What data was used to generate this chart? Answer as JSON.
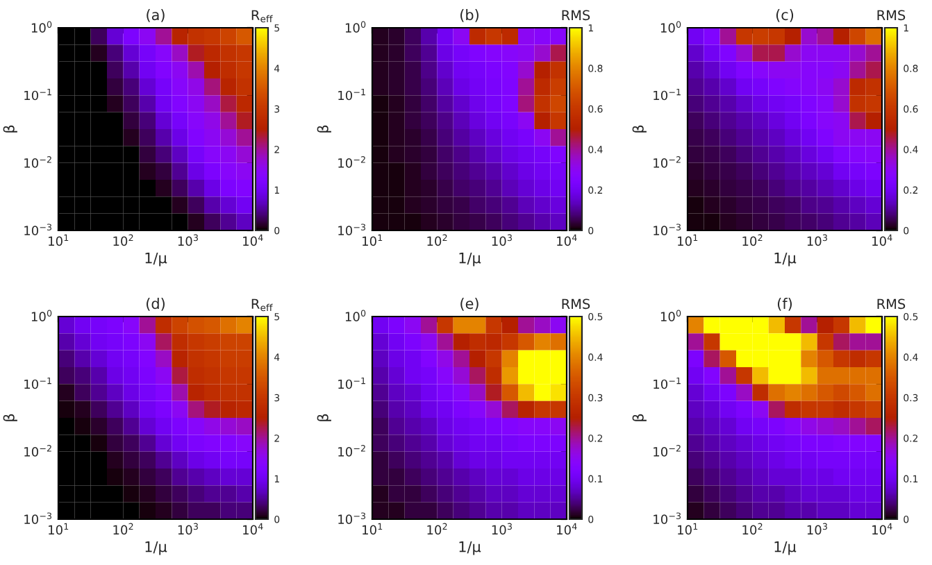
{
  "chart_data": [
    {
      "type": "heatmap",
      "title": "(a)",
      "xlabel": "1/μ",
      "ylabel": "β",
      "clabel": "R$_{eff}$",
      "log": "xy",
      "xlim": [
        10,
        10000
      ],
      "ylim": [
        0.001,
        1
      ],
      "xticks": [
        {
          "value": 10,
          "label": "10$^{1}$"
        },
        {
          "value": 100,
          "label": "10$^{2}$"
        },
        {
          "value": 1000,
          "label": "10$^{3}$"
        },
        {
          "value": 10000,
          "label": "10$^{4}$"
        }
      ],
      "yticks": [
        {
          "value": 0.001,
          "label": "10$^{−3}$"
        },
        {
          "value": 0.01,
          "label": "10$^{−2}$"
        },
        {
          "value": 0.1,
          "label": "10$^{−1}$"
        },
        {
          "value": 1,
          "label": "10$^{0}$"
        }
      ],
      "clim": [
        0,
        5
      ],
      "cticks": [
        0,
        1,
        2,
        3,
        4,
        5
      ],
      "cells": [
        [
          0,
          0,
          0.3,
          0.8,
          1.2,
          1.5,
          2.0,
          2.6,
          2.9,
          3.0,
          3.2,
          3.5
        ],
        [
          0,
          0,
          0.1,
          0.4,
          0.8,
          1.1,
          1.4,
          1.8,
          2.4,
          2.7,
          2.9,
          3.0
        ],
        [
          0,
          0,
          0,
          0.3,
          0.6,
          1.0,
          1.3,
          1.5,
          1.9,
          2.5,
          2.8,
          3.0
        ],
        [
          0,
          0,
          0,
          0.2,
          0.4,
          0.8,
          1.1,
          1.4,
          1.6,
          2.1,
          2.6,
          2.9
        ],
        [
          0,
          0,
          0,
          0.1,
          0.3,
          0.6,
          1.0,
          1.3,
          1.5,
          1.8,
          2.3,
          2.7
        ],
        [
          0,
          0,
          0,
          0,
          0.2,
          0.4,
          0.8,
          1.1,
          1.4,
          1.6,
          2.0,
          2.4
        ],
        [
          0,
          0,
          0,
          0,
          0.1,
          0.3,
          0.6,
          0.9,
          1.3,
          1.5,
          1.7,
          2.0
        ],
        [
          0,
          0,
          0,
          0,
          0,
          0.2,
          0.4,
          0.7,
          1.1,
          1.4,
          1.5,
          1.7
        ],
        [
          0,
          0,
          0,
          0,
          0,
          0.1,
          0.2,
          0.5,
          0.9,
          1.2,
          1.4,
          1.5
        ],
        [
          0,
          0,
          0,
          0,
          0,
          0,
          0.1,
          0.3,
          0.6,
          0.9,
          1.2,
          1.3
        ],
        [
          0,
          0,
          0,
          0,
          0,
          0,
          0,
          0.1,
          0.3,
          0.6,
          0.8,
          1.0
        ],
        [
          0,
          0,
          0,
          0,
          0,
          0,
          0,
          0,
          0.1,
          0.3,
          0.5,
          0.7
        ]
      ]
    },
    {
      "type": "heatmap",
      "title": "(b)",
      "xlabel": "1/μ",
      "ylabel": "β",
      "clabel": "RMS",
      "log": "xy",
      "xlim": [
        10,
        10000
      ],
      "ylim": [
        0.001,
        1
      ],
      "xticks": [
        {
          "value": 10,
          "label": "10$^{1}$"
        },
        {
          "value": 100,
          "label": "10$^{2}$"
        },
        {
          "value": 1000,
          "label": "10$^{3}$"
        },
        {
          "value": 10000,
          "label": "10$^{4}$"
        }
      ],
      "yticks": [
        {
          "value": 0.001,
          "label": "10$^{−3}$"
        },
        {
          "value": 0.01,
          "label": "10$^{−2}$"
        },
        {
          "value": 0.1,
          "label": "10$^{−1}$"
        },
        {
          "value": 1,
          "label": "10$^{0}$"
        }
      ],
      "clim": [
        0,
        1
      ],
      "cticks": [
        0,
        0.2,
        0.4,
        0.6,
        0.8,
        1
      ],
      "cells": [
        [
          0.02,
          0.03,
          0.06,
          0.12,
          0.2,
          0.3,
          0.55,
          0.6,
          0.55,
          0.3,
          0.28,
          0.28
        ],
        [
          0.02,
          0.03,
          0.06,
          0.1,
          0.18,
          0.22,
          0.25,
          0.27,
          0.28,
          0.3,
          0.35,
          0.45
        ],
        [
          0.02,
          0.03,
          0.05,
          0.09,
          0.15,
          0.2,
          0.22,
          0.24,
          0.26,
          0.35,
          0.5,
          0.58
        ],
        [
          0.02,
          0.03,
          0.05,
          0.08,
          0.13,
          0.18,
          0.21,
          0.23,
          0.25,
          0.4,
          0.55,
          0.62
        ],
        [
          0.01,
          0.02,
          0.04,
          0.07,
          0.11,
          0.15,
          0.19,
          0.22,
          0.25,
          0.42,
          0.58,
          0.65
        ],
        [
          0.01,
          0.02,
          0.04,
          0.06,
          0.09,
          0.13,
          0.17,
          0.2,
          0.23,
          0.3,
          0.5,
          0.6
        ],
        [
          0.01,
          0.02,
          0.03,
          0.05,
          0.08,
          0.11,
          0.14,
          0.17,
          0.2,
          0.23,
          0.3,
          0.4
        ],
        [
          0.01,
          0.02,
          0.03,
          0.04,
          0.07,
          0.09,
          0.12,
          0.15,
          0.18,
          0.2,
          0.22,
          0.25
        ],
        [
          0.01,
          0.01,
          0.02,
          0.04,
          0.06,
          0.08,
          0.1,
          0.12,
          0.15,
          0.18,
          0.2,
          0.22
        ],
        [
          0.01,
          0.01,
          0.02,
          0.03,
          0.05,
          0.07,
          0.08,
          0.1,
          0.13,
          0.16,
          0.18,
          0.2
        ],
        [
          0.01,
          0.01,
          0.02,
          0.03,
          0.04,
          0.05,
          0.07,
          0.08,
          0.1,
          0.13,
          0.15,
          0.17
        ],
        [
          0.01,
          0.01,
          0.01,
          0.02,
          0.03,
          0.04,
          0.05,
          0.06,
          0.08,
          0.1,
          0.12,
          0.14
        ]
      ]
    },
    {
      "type": "heatmap",
      "title": "(c)",
      "xlabel": "1/μ",
      "ylabel": "β",
      "clabel": "RMS",
      "log": "xy",
      "xlim": [
        10,
        10000
      ],
      "ylim": [
        0.001,
        1
      ],
      "xticks": [
        {
          "value": 10,
          "label": "10$^{1}$"
        },
        {
          "value": 100,
          "label": "10$^{2}$"
        },
        {
          "value": 1000,
          "label": "10$^{3}$"
        },
        {
          "value": 10000,
          "label": "10$^{4}$"
        }
      ],
      "yticks": [
        {
          "value": 0.001,
          "label": "10$^{−3}$"
        },
        {
          "value": 0.01,
          "label": "10$^{−2}$"
        },
        {
          "value": 0.1,
          "label": "10$^{−1}$"
        },
        {
          "value": 1,
          "label": "10$^{0}$"
        }
      ],
      "clim": [
        0,
        1
      ],
      "cticks": [
        0,
        0.2,
        0.4,
        0.6,
        0.8,
        1
      ],
      "cells": [
        [
          0.2,
          0.25,
          0.4,
          0.6,
          0.62,
          0.6,
          0.5,
          0.35,
          0.4,
          0.5,
          0.65,
          0.75
        ],
        [
          0.15,
          0.2,
          0.25,
          0.35,
          0.45,
          0.45,
          0.35,
          0.3,
          0.3,
          0.3,
          0.35,
          0.4
        ],
        [
          0.12,
          0.15,
          0.2,
          0.25,
          0.28,
          0.3,
          0.3,
          0.28,
          0.28,
          0.3,
          0.4,
          0.45
        ],
        [
          0.1,
          0.12,
          0.15,
          0.2,
          0.22,
          0.25,
          0.27,
          0.28,
          0.3,
          0.35,
          0.55,
          0.58
        ],
        [
          0.08,
          0.1,
          0.12,
          0.15,
          0.18,
          0.2,
          0.22,
          0.25,
          0.28,
          0.35,
          0.58,
          0.6
        ],
        [
          0.06,
          0.08,
          0.1,
          0.12,
          0.14,
          0.17,
          0.2,
          0.24,
          0.28,
          0.3,
          0.45,
          0.5
        ],
        [
          0.05,
          0.06,
          0.08,
          0.1,
          0.12,
          0.14,
          0.17,
          0.2,
          0.25,
          0.3,
          0.3,
          0.3
        ],
        [
          0.04,
          0.05,
          0.06,
          0.08,
          0.1,
          0.12,
          0.14,
          0.17,
          0.2,
          0.25,
          0.27,
          0.28
        ],
        [
          0.03,
          0.04,
          0.05,
          0.06,
          0.08,
          0.1,
          0.12,
          0.14,
          0.16,
          0.2,
          0.22,
          0.24
        ],
        [
          0.02,
          0.03,
          0.04,
          0.05,
          0.06,
          0.08,
          0.1,
          0.11,
          0.13,
          0.15,
          0.18,
          0.2
        ],
        [
          0.01,
          0.02,
          0.03,
          0.04,
          0.05,
          0.06,
          0.07,
          0.09,
          0.1,
          0.12,
          0.14,
          0.16
        ],
        [
          0.01,
          0.01,
          0.02,
          0.03,
          0.04,
          0.05,
          0.06,
          0.07,
          0.08,
          0.1,
          0.11,
          0.13
        ]
      ]
    },
    {
      "type": "heatmap",
      "title": "(d)",
      "xlabel": "1/μ",
      "ylabel": "β",
      "clabel": "R$_{eff}$",
      "log": "xy",
      "xlim": [
        10,
        10000
      ],
      "ylim": [
        0.001,
        1
      ],
      "xticks": [
        {
          "value": 10,
          "label": "10$^{1}$"
        },
        {
          "value": 100,
          "label": "10$^{2}$"
        },
        {
          "value": 1000,
          "label": "10$^{3}$"
        },
        {
          "value": 10000,
          "label": "10$^{4}$"
        }
      ],
      "yticks": [
        {
          "value": 0.001,
          "label": "10$^{−3}$"
        },
        {
          "value": 0.01,
          "label": "10$^{−2}$"
        },
        {
          "value": 0.1,
          "label": "10$^{−1}$"
        },
        {
          "value": 1,
          "label": "10$^{0}$"
        }
      ],
      "clim": [
        0,
        5
      ],
      "cticks": [
        0,
        1,
        2,
        3,
        4,
        5
      ],
      "cells": [
        [
          0.8,
          1.0,
          1.1,
          1.2,
          1.4,
          2.0,
          2.8,
          3.2,
          3.4,
          3.5,
          3.8,
          4.0
        ],
        [
          0.6,
          0.8,
          1.0,
          1.1,
          1.2,
          1.5,
          2.2,
          2.8,
          3.0,
          3.1,
          3.2,
          3.2
        ],
        [
          0.4,
          0.6,
          0.8,
          1.0,
          1.1,
          1.3,
          1.8,
          2.6,
          2.9,
          3.0,
          3.1,
          3.1
        ],
        [
          0.3,
          0.4,
          0.6,
          0.9,
          1.0,
          1.2,
          1.5,
          2.3,
          2.8,
          2.9,
          3.0,
          3.0
        ],
        [
          0.1,
          0.3,
          0.5,
          0.7,
          0.9,
          1.1,
          1.3,
          1.9,
          2.6,
          2.8,
          2.9,
          2.9
        ],
        [
          0.05,
          0.1,
          0.3,
          0.5,
          0.7,
          1.0,
          1.2,
          1.5,
          2.1,
          2.4,
          2.6,
          2.7
        ],
        [
          0,
          0.05,
          0.15,
          0.3,
          0.5,
          0.8,
          1.0,
          1.2,
          1.4,
          1.6,
          1.7,
          1.8
        ],
        [
          0,
          0,
          0.05,
          0.2,
          0.3,
          0.5,
          0.8,
          1.0,
          1.2,
          1.3,
          1.3,
          1.4
        ],
        [
          0,
          0,
          0,
          0.1,
          0.2,
          0.3,
          0.5,
          0.7,
          0.9,
          1.0,
          1.1,
          1.1
        ],
        [
          0,
          0,
          0,
          0.05,
          0.1,
          0.2,
          0.3,
          0.5,
          0.6,
          0.7,
          0.8,
          0.8
        ],
        [
          0,
          0,
          0,
          0,
          0.05,
          0.1,
          0.2,
          0.3,
          0.4,
          0.5,
          0.5,
          0.6
        ],
        [
          0,
          0,
          0,
          0,
          0,
          0.05,
          0.1,
          0.2,
          0.3,
          0.3,
          0.4,
          0.4
        ]
      ]
    },
    {
      "type": "heatmap",
      "title": "(e)",
      "xlabel": "1/μ",
      "ylabel": "β",
      "clabel": "RMS",
      "log": "xy",
      "xlim": [
        10,
        10000
      ],
      "ylim": [
        0.001,
        1
      ],
      "xticks": [
        {
          "value": 10,
          "label": "10$^{1}$"
        },
        {
          "value": 100,
          "label": "10$^{2}$"
        },
        {
          "value": 1000,
          "label": "10$^{3}$"
        },
        {
          "value": 10000,
          "label": "10$^{4}$"
        }
      ],
      "yticks": [
        {
          "value": 0.001,
          "label": "10$^{−3}$"
        },
        {
          "value": 0.01,
          "label": "10$^{−2}$"
        },
        {
          "value": 0.1,
          "label": "10$^{−1}$"
        },
        {
          "value": 1,
          "label": "10$^{0}$"
        }
      ],
      "clim": [
        0,
        0.5
      ],
      "cticks": [
        0,
        0.1,
        0.2,
        0.3,
        0.4,
        0.5
      ],
      "cells": [
        [
          0.1,
          0.12,
          0.15,
          0.2,
          0.3,
          0.4,
          0.4,
          0.3,
          0.25,
          0.2,
          0.18,
          0.15
        ],
        [
          0.08,
          0.1,
          0.12,
          0.15,
          0.2,
          0.25,
          0.28,
          0.27,
          0.3,
          0.35,
          0.4,
          0.38
        ],
        [
          0.07,
          0.09,
          0.1,
          0.13,
          0.16,
          0.2,
          0.25,
          0.3,
          0.4,
          0.5,
          0.5,
          0.5
        ],
        [
          0.06,
          0.08,
          0.1,
          0.11,
          0.14,
          0.17,
          0.22,
          0.28,
          0.42,
          0.5,
          0.5,
          0.5
        ],
        [
          0.05,
          0.07,
          0.08,
          0.1,
          0.12,
          0.14,
          0.18,
          0.24,
          0.35,
          0.45,
          0.5,
          0.48
        ],
        [
          0.04,
          0.06,
          0.07,
          0.09,
          0.1,
          0.12,
          0.14,
          0.17,
          0.22,
          0.26,
          0.3,
          0.3
        ],
        [
          0.03,
          0.05,
          0.06,
          0.07,
          0.09,
          0.1,
          0.11,
          0.12,
          0.13,
          0.14,
          0.14,
          0.15
        ],
        [
          0.03,
          0.04,
          0.05,
          0.06,
          0.08,
          0.09,
          0.1,
          0.1,
          0.11,
          0.12,
          0.12,
          0.12
        ],
        [
          0.02,
          0.03,
          0.04,
          0.05,
          0.06,
          0.08,
          0.09,
          0.09,
          0.1,
          0.1,
          0.1,
          0.1
        ],
        [
          0.02,
          0.02,
          0.03,
          0.04,
          0.05,
          0.06,
          0.07,
          0.08,
          0.08,
          0.09,
          0.09,
          0.09
        ],
        [
          0.01,
          0.02,
          0.02,
          0.03,
          0.04,
          0.05,
          0.06,
          0.07,
          0.07,
          0.08,
          0.08,
          0.08
        ],
        [
          0.01,
          0.01,
          0.02,
          0.02,
          0.03,
          0.04,
          0.05,
          0.06,
          0.06,
          0.07,
          0.07,
          0.07
        ]
      ]
    },
    {
      "type": "heatmap",
      "title": "(f)",
      "xlabel": "1/μ",
      "ylabel": "β",
      "clabel": "RMS",
      "log": "xy",
      "xlim": [
        10,
        10000
      ],
      "ylim": [
        0.001,
        1
      ],
      "xticks": [
        {
          "value": 10,
          "label": "10$^{1}$"
        },
        {
          "value": 100,
          "label": "10$^{2}$"
        },
        {
          "value": 1000,
          "label": "10$^{3}$"
        },
        {
          "value": 10000,
          "label": "10$^{4}$"
        }
      ],
      "yticks": [
        {
          "value": 0.001,
          "label": "10$^{−3}$"
        },
        {
          "value": 0.01,
          "label": "10$^{−2}$"
        },
        {
          "value": 0.1,
          "label": "10$^{−1}$"
        },
        {
          "value": 1,
          "label": "10$^{0}$"
        }
      ],
      "clim": [
        0,
        0.5
      ],
      "cticks": [
        0,
        0.1,
        0.2,
        0.3,
        0.4,
        0.5
      ],
      "cells": [
        [
          0.4,
          0.5,
          0.5,
          0.5,
          0.5,
          0.45,
          0.3,
          0.2,
          0.25,
          0.3,
          0.45,
          0.5
        ],
        [
          0.2,
          0.3,
          0.5,
          0.5,
          0.5,
          0.5,
          0.5,
          0.45,
          0.3,
          0.22,
          0.2,
          0.2
        ],
        [
          0.12,
          0.22,
          0.35,
          0.5,
          0.5,
          0.5,
          0.5,
          0.4,
          0.35,
          0.3,
          0.28,
          0.3
        ],
        [
          0.1,
          0.13,
          0.2,
          0.3,
          0.45,
          0.5,
          0.5,
          0.45,
          0.38,
          0.38,
          0.38,
          0.38
        ],
        [
          0.08,
          0.1,
          0.12,
          0.18,
          0.28,
          0.38,
          0.4,
          0.38,
          0.35,
          0.33,
          0.35,
          0.38
        ],
        [
          0.07,
          0.08,
          0.1,
          0.12,
          0.15,
          0.22,
          0.28,
          0.3,
          0.3,
          0.28,
          0.3,
          0.32
        ],
        [
          0.06,
          0.07,
          0.08,
          0.1,
          0.11,
          0.12,
          0.14,
          0.16,
          0.17,
          0.18,
          0.2,
          0.22
        ],
        [
          0.05,
          0.06,
          0.07,
          0.08,
          0.09,
          0.1,
          0.11,
          0.12,
          0.12,
          0.13,
          0.13,
          0.13
        ],
        [
          0.04,
          0.05,
          0.06,
          0.07,
          0.08,
          0.09,
          0.1,
          0.1,
          0.11,
          0.11,
          0.11,
          0.11
        ],
        [
          0.03,
          0.04,
          0.05,
          0.06,
          0.07,
          0.08,
          0.08,
          0.09,
          0.09,
          0.1,
          0.1,
          0.1
        ],
        [
          0.02,
          0.03,
          0.04,
          0.05,
          0.06,
          0.06,
          0.07,
          0.08,
          0.08,
          0.08,
          0.09,
          0.09
        ],
        [
          0.01,
          0.02,
          0.03,
          0.04,
          0.05,
          0.05,
          0.06,
          0.06,
          0.07,
          0.07,
          0.08,
          0.08
        ]
      ]
    }
  ]
}
